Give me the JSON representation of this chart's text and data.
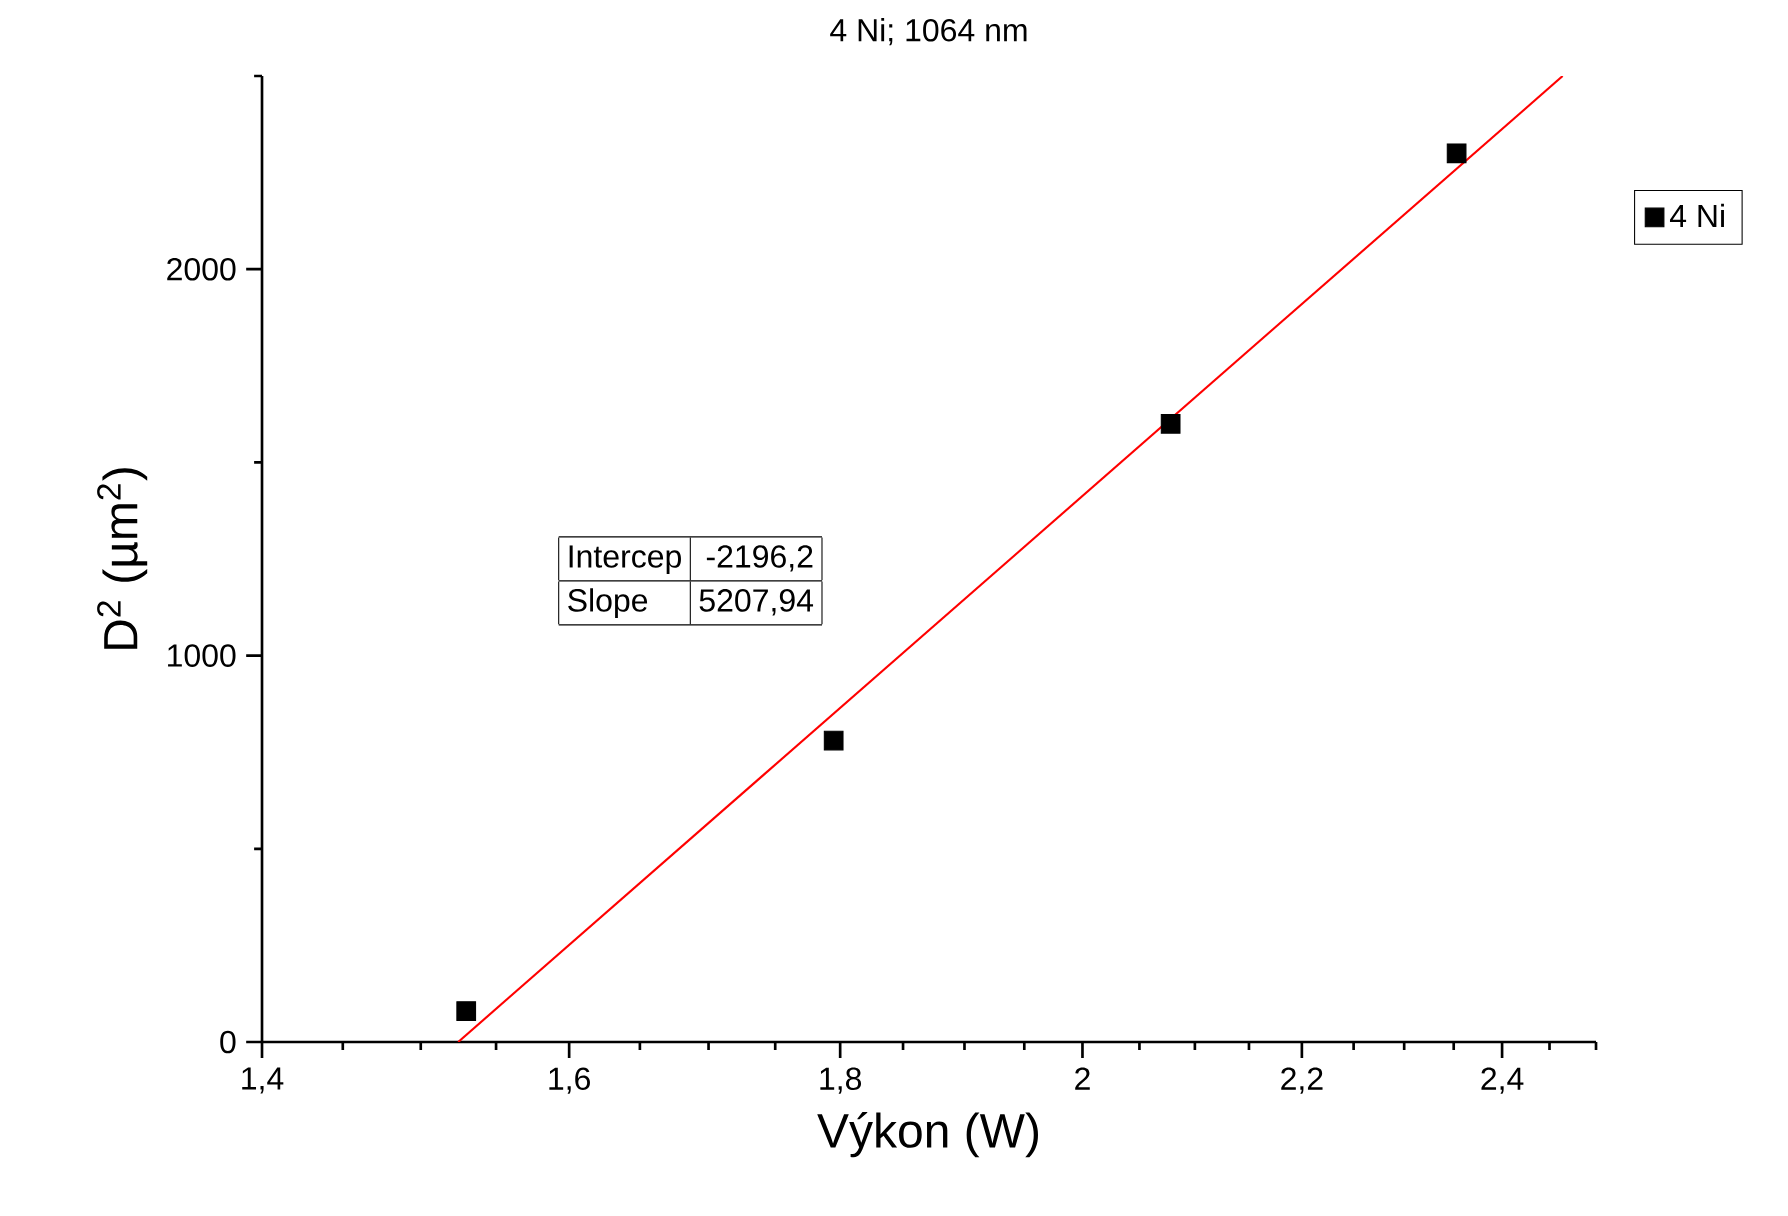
{
  "chart_data": {
    "type": "scatter",
    "title": "4 Ni; 1064 nm",
    "xlabel": "Výkon (W)",
    "ylabel": "D$^{2}$ (µm$^{2}$)",
    "log": "x",
    "xlim": [
      1.4,
      2.5
    ],
    "ylim": [
      0,
      2500
    ],
    "xticks": [
      {
        "value": 1.4,
        "label": "1,4"
      },
      {
        "value": 1.6,
        "label": "1,6"
      },
      {
        "value": 1.8,
        "label": "1,8"
      },
      2,
      {
        "value": 2.2,
        "label": "2,2"
      },
      {
        "value": 2.4,
        "label": "2,4"
      }
    ],
    "yticks": [
      0,
      1000,
      2000
    ],
    "legend": "right",
    "annotations": [
      "Intercep",
      "-2196,2",
      "Slope",
      "5207,94"
    ],
    "series": [
      {
        "name": "4 Ni",
        "marker": "square",
        "color": "#000000",
        "x": [
          1.53,
          1.795,
          2.078,
          2.353
        ],
        "values": [
          80,
          780,
          1600,
          2300
        ]
      },
      {
        "type": "line",
        "color": "#ff0000",
        "x": [
          1.5246,
          2.464
        ],
        "values": [
          0,
          2500
        ]
      }
    ]
  }
}
